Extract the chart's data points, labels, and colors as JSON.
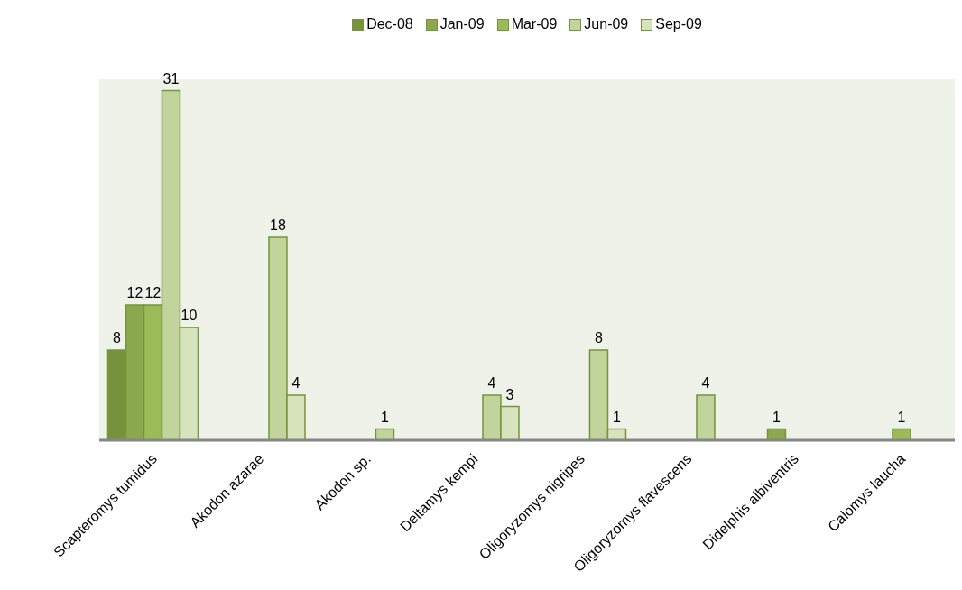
{
  "chart_data": {
    "type": "bar",
    "categories": [
      "Scapteromys tumidus",
      "Akodon azarae",
      "Akodon sp.",
      "Deltamys kempi",
      "Oligoryzomys nigripes",
      "Oligoryzomys flavescens",
      "Didelphis albiventris",
      "Calomys laucha"
    ],
    "series": [
      {
        "name": "Dec-08",
        "color": "#76923c",
        "values": [
          8,
          null,
          null,
          null,
          null,
          null,
          null,
          null
        ]
      },
      {
        "name": "Jan-09",
        "color": "#8aa84d",
        "values": [
          12,
          null,
          null,
          null,
          null,
          null,
          1,
          null
        ]
      },
      {
        "name": "Mar-09",
        "color": "#9bbb59",
        "values": [
          12,
          null,
          null,
          null,
          null,
          null,
          null,
          1
        ]
      },
      {
        "name": "Jun-09",
        "color": "#c0d49c",
        "values": [
          31,
          18,
          1,
          4,
          8,
          4,
          null,
          null
        ]
      },
      {
        "name": "Sep-09",
        "color": "#d6e3bd",
        "values": [
          10,
          4,
          null,
          3,
          1,
          null,
          null,
          null
        ]
      }
    ],
    "data_labels": true,
    "legend": "top",
    "grid": false
  }
}
